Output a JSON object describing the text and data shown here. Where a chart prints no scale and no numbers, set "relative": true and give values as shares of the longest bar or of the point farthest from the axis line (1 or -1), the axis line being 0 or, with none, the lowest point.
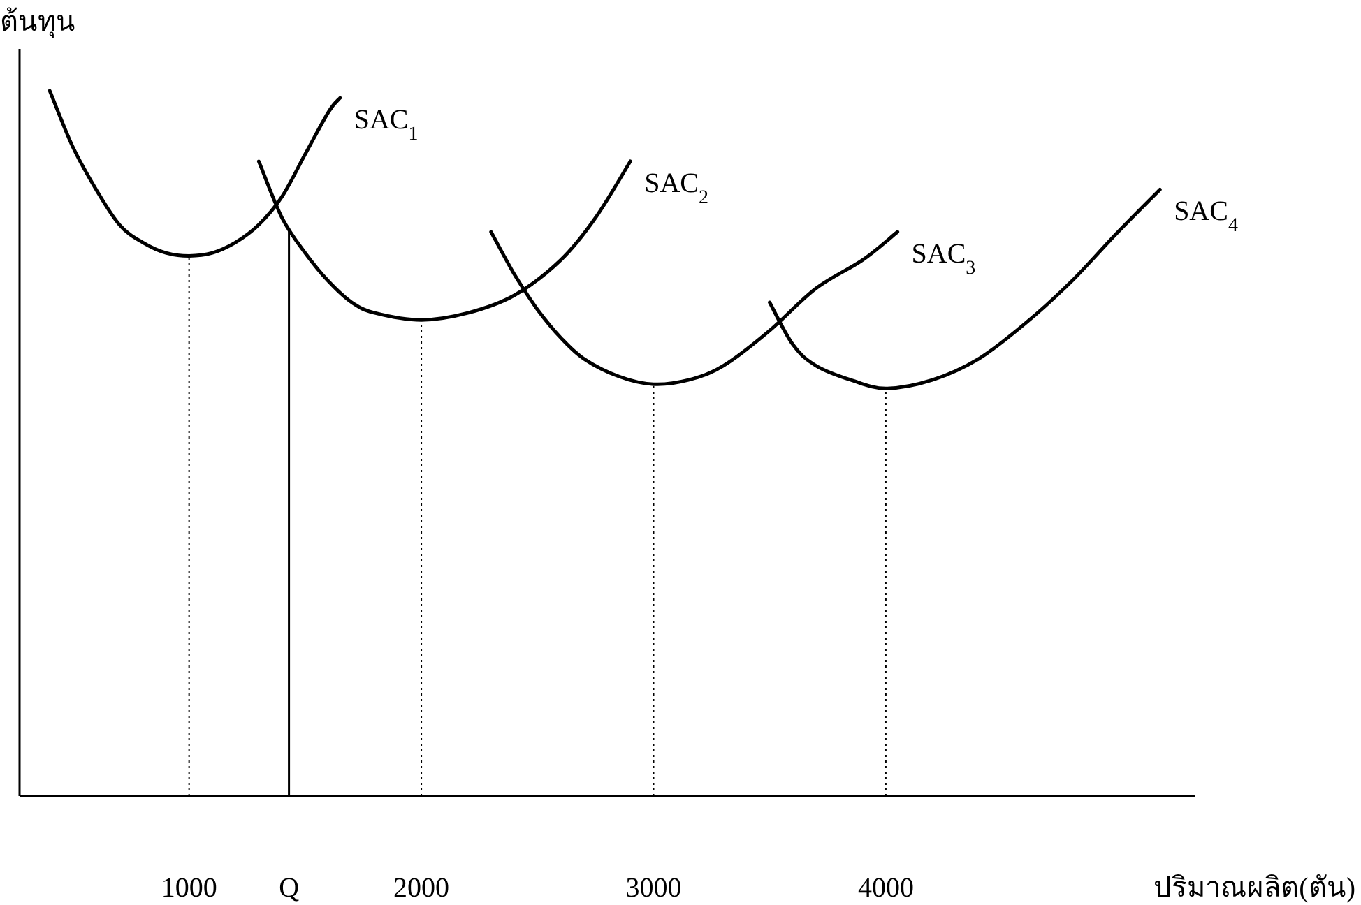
{
  "chart_data": {
    "type": "line",
    "relative": true,
    "ylabel": "ต้นทุน",
    "xlabel": "ปริมาณผลิต(ตัน)",
    "xlim": [
      270,
      5330
    ],
    "xticks": [
      1000,
      {
        "value": 1430,
        "label": "Q"
      },
      2000,
      3000,
      4000
    ],
    "series": [
      {
        "name": "SAC$_{1}$",
        "color": "#000000",
        "x": [
          400,
          500,
          600,
          700,
          800,
          900,
          1000,
          1100,
          1200,
          1300,
          1400,
          1500,
          1600,
          1650
        ],
        "values": [
          1.0,
          0.92,
          0.86,
          0.81,
          0.785,
          0.77,
          0.766,
          0.77,
          0.785,
          0.81,
          0.85,
          0.91,
          0.97,
          0.99
        ]
      },
      {
        "name": "SAC$_{2}$",
        "color": "#000000",
        "x": [
          1300,
          1400,
          1500,
          1600,
          1700,
          1800,
          2000,
          2200,
          2400,
          2600,
          2750,
          2900
        ],
        "values": [
          0.9,
          0.82,
          0.77,
          0.73,
          0.7,
          0.685,
          0.675,
          0.685,
          0.71,
          0.76,
          0.82,
          0.9
        ]
      },
      {
        "name": "SAC$_{3}$",
        "color": "#000000",
        "x": [
          2300,
          2400,
          2500,
          2600,
          2700,
          2850,
          3000,
          3150,
          3300,
          3500,
          3700,
          3900,
          4050
        ],
        "values": [
          0.8,
          0.74,
          0.69,
          0.65,
          0.62,
          0.595,
          0.584,
          0.59,
          0.61,
          0.66,
          0.72,
          0.76,
          0.8
        ]
      },
      {
        "name": "SAC$_{4}$",
        "color": "#000000",
        "x": [
          3500,
          3600,
          3700,
          3850,
          4000,
          4200,
          4400,
          4600,
          4800,
          5000,
          5180
        ],
        "values": [
          0.7,
          0.64,
          0.61,
          0.59,
          0.578,
          0.59,
          0.62,
          0.67,
          0.73,
          0.8,
          0.86
        ]
      }
    ],
    "ref_lines": [
      {
        "axis": "x",
        "value": 1000,
        "line_style": "dotted"
      },
      {
        "axis": "x",
        "value": 1430,
        "line_style": "solid"
      },
      {
        "axis": "x",
        "value": 2000,
        "line_style": "dotted"
      },
      {
        "axis": "x",
        "value": 3000,
        "line_style": "dotted"
      },
      {
        "axis": "x",
        "value": 4000,
        "line_style": "dotted"
      }
    ]
  }
}
